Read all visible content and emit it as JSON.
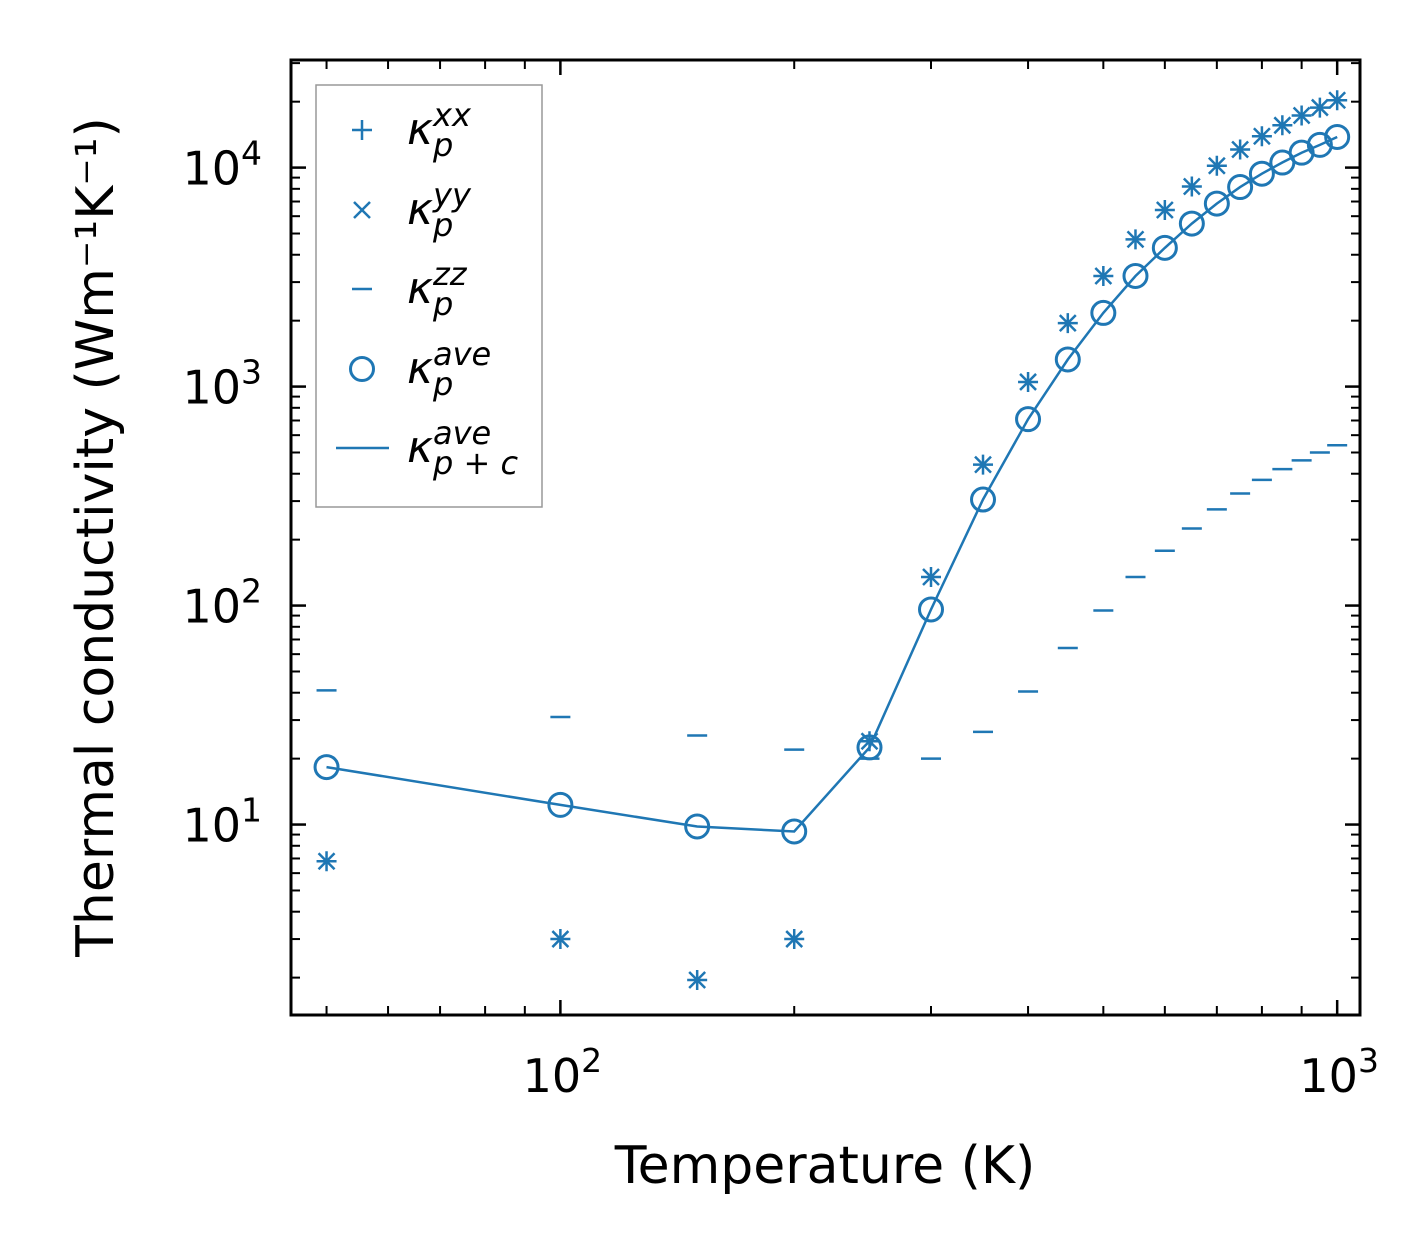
{
  "chart_data": {
    "type": "scatter",
    "xscale": "log",
    "yscale": "log",
    "xlim": [
      45,
      1070
    ],
    "ylim": [
      1.35,
      31000
    ],
    "xlabel": "Temperature (K)",
    "ylabel": "Thermal conductivity (Wm⁻¹K⁻¹)",
    "x_ticks": [
      {
        "base": "10",
        "exp": "2",
        "value": 100
      },
      {
        "base": "10",
        "exp": "3",
        "value": 1000
      }
    ],
    "y_ticks": [
      {
        "base": "10",
        "exp": "1",
        "value": 10
      },
      {
        "base": "10",
        "exp": "2",
        "value": 100
      },
      {
        "base": "10",
        "exp": "3",
        "value": 1000
      },
      {
        "base": "10",
        "exp": "4",
        "value": 10000
      }
    ],
    "color": "#1f77b4",
    "series": [
      {
        "name": "κ_p^xx",
        "base": "κ",
        "sub": "p",
        "sup": "xx",
        "marker": "plus",
        "x": [
          50,
          100,
          150,
          200,
          250,
          300,
          350,
          400,
          450,
          500,
          550,
          600,
          650,
          700,
          750,
          800,
          850,
          900,
          950,
          1000
        ],
        "y": [
          6.8,
          3.0,
          1.95,
          3.0,
          24,
          135,
          440,
          1050,
          1950,
          3200,
          4700,
          6400,
          8200,
          10200,
          12100,
          13900,
          15600,
          17300,
          18800,
          20300
        ]
      },
      {
        "name": "κ_p^yy",
        "base": "κ",
        "sub": "p",
        "sup": "yy",
        "marker": "x",
        "x": [
          50,
          100,
          150,
          200,
          250,
          300,
          350,
          400,
          450,
          500,
          550,
          600,
          650,
          700,
          750,
          800,
          850,
          900,
          950,
          1000
        ],
        "y": [
          6.8,
          3.0,
          1.95,
          3.0,
          24,
          135,
          440,
          1050,
          1950,
          3200,
          4700,
          6400,
          8200,
          10200,
          12100,
          13900,
          15600,
          17300,
          18800,
          20300
        ]
      },
      {
        "name": "κ_p^zz",
        "base": "κ",
        "sub": "p",
        "sup": "zz",
        "marker": "hline",
        "x": [
          50,
          100,
          150,
          200,
          250,
          300,
          350,
          400,
          450,
          500,
          550,
          600,
          650,
          700,
          750,
          800,
          850,
          900,
          950,
          1000
        ],
        "y": [
          41,
          31,
          25.5,
          22,
          20,
          20,
          26.5,
          40.5,
          64,
          95,
          135,
          178,
          225,
          275,
          325,
          375,
          420,
          460,
          500,
          540
        ]
      },
      {
        "name": "κ_p^ave",
        "base": "κ",
        "sub": "p",
        "sup": "ave",
        "marker": "circle",
        "x": [
          50,
          100,
          150,
          200,
          250,
          300,
          350,
          400,
          450,
          500,
          550,
          600,
          650,
          700,
          750,
          800,
          850,
          900,
          950,
          1000
        ],
        "y": [
          18.3,
          12.3,
          9.8,
          9.3,
          22.5,
          96,
          305,
          710,
          1330,
          2170,
          3200,
          4300,
          5550,
          6850,
          8150,
          9380,
          10550,
          11700,
          12700,
          13800
        ]
      },
      {
        "name": "κ_p+c^ave",
        "base": "κ",
        "sub": "p + c",
        "sup": "ave",
        "marker": "line",
        "x": [
          50,
          100,
          150,
          200,
          250,
          300,
          350,
          400,
          450,
          500,
          550,
          600,
          650,
          700,
          750,
          800,
          850,
          900,
          950,
          1000
        ],
        "y": [
          18.3,
          12.3,
          9.8,
          9.3,
          22.5,
          96,
          305,
          710,
          1330,
          2170,
          3200,
          4300,
          5550,
          6850,
          8150,
          9380,
          10550,
          11700,
          12700,
          13800
        ]
      }
    ],
    "legend_position": "top-left"
  }
}
